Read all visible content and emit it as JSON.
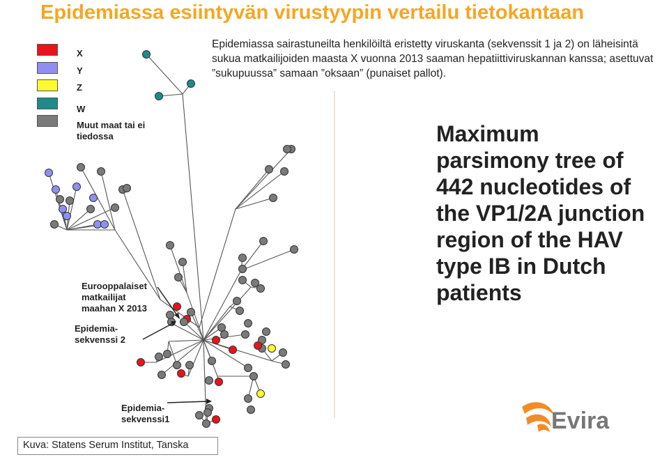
{
  "title": "Epidemiassa esiintyvän virustyypin vertailu tietokantaan",
  "legend": [
    {
      "label": "X",
      "color": "#e8141b"
    },
    {
      "label": "Y",
      "color": "#8f8ff2"
    },
    {
      "label": "Z",
      "color": "#fbfa2e"
    },
    {
      "label": "W",
      "color": "#1f8a8a"
    },
    {
      "label": "Muut maat tai ei tiedossa",
      "color": "#7a7a7a"
    }
  ],
  "description": "Epidemiassa sairastuneilta henkilöiltä eristetty viruskanta (sekvenssit 1 ja 2) on läheisintä sukua matkailijoiden maasta X vuonna 2013 saaman hepatiittiviruskannan kanssa; asettuvat ”sukupuussa” samaan ”oksaan” (punaiset pallot).",
  "annotations": {
    "travellers": "Eurooppalaiset\nmatkailijat\nmaahan X 2013",
    "sequence2": "Epidemia-\nsekvenssi 2",
    "sequence1": "Epidemia-\nsekvenssi1"
  },
  "caption": "Maximum parsimony tree of 442 nucleotides of the VP1/2A junction region of the HAV type IB in Dutch patients",
  "credit": "Kuva: Statens Serum Institut, Tanska",
  "logo": {
    "text": "Evira",
    "colors": {
      "mark": "#f28c28",
      "text": "#777777"
    }
  }
}
